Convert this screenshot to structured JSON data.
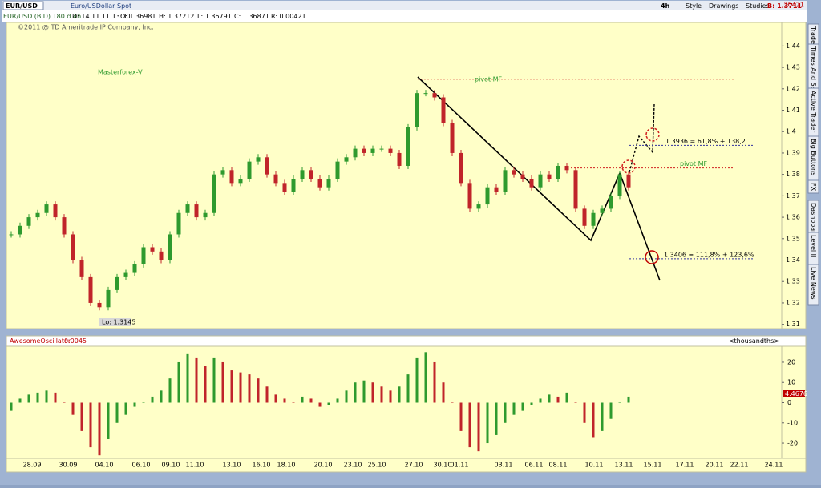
{
  "toolbar": {
    "symbol": "EUR/USD",
    "description": "Euro/USDollar Spot",
    "period": "4h",
    "buttons": [
      "Style",
      "Drawings",
      "Studies"
    ],
    "bid": "B: 1.3711",
    "change": ".20421"
  },
  "info_bar": [
    "EUR/USD (BID) 180 d 4h",
    "D: 14.11.11 13:00",
    "O: 1.36981",
    "H: 1.37212",
    "L: 1.36791",
    "C: 1.36871",
    "R: 0.00421"
  ],
  "copyright": "©2011 @ TD Ameritrade IP Company, Inc.",
  "side_tabs": [
    "Trade",
    "Times And Sales",
    "Active Trader",
    "Big Buttons",
    "FX",
    "Dashboard",
    "Level II",
    "Live News"
  ],
  "chart_data": [
    {
      "type": "candlestick",
      "title": "Masterforex-V",
      "closes": [
        1.352,
        1.356,
        1.36,
        1.362,
        1.366,
        1.36,
        1.352,
        1.34,
        1.332,
        1.32,
        1.318,
        1.326,
        1.332,
        1.334,
        1.338,
        1.346,
        1.344,
        1.34,
        1.352,
        1.362,
        1.366,
        1.36,
        1.362,
        1.38,
        1.382,
        1.376,
        1.378,
        1.386,
        1.388,
        1.38,
        1.376,
        1.372,
        1.378,
        1.382,
        1.378,
        1.374,
        1.378,
        1.386,
        1.388,
        1.392,
        1.39,
        1.392,
        1.392,
        1.39,
        1.384,
        1.402,
        1.418,
        1.418,
        1.416,
        1.404,
        1.39,
        1.376,
        1.364,
        1.366,
        1.374,
        1.372,
        1.382,
        1.38,
        1.378,
        1.374,
        1.38,
        1.378,
        1.384,
        1.382,
        1.364,
        1.356,
        1.362,
        1.364,
        1.37,
        1.38,
        1.374
      ],
      "up_color": "#2e9a2e",
      "down_color": "#c0242a",
      "ylim": [
        1.308,
        1.451
      ],
      "yticks": [
        1.31,
        1.32,
        1.33,
        1.34,
        1.35,
        1.36,
        1.37,
        1.38,
        1.39,
        1.4,
        1.41,
        1.42,
        1.43,
        1.44
      ],
      "low_label": "Lo: 1.3145",
      "levels": [
        {
          "value": 1.4245,
          "label": "pivot MF",
          "color": "#d02020"
        },
        {
          "value": 1.383,
          "label": "pivot MF",
          "color": "#d02020"
        },
        {
          "value": 1.3936,
          "label": "1.3936 = 61,8% + 138,2",
          "color": "#3030a0"
        },
        {
          "value": 1.3406,
          "label": "1.3406 = 111,8% + 123,6%",
          "color": "#3030a0"
        }
      ],
      "x_labels": [
        "28.09",
        "30.09",
        "04.10",
        "06.10",
        "09.10",
        "11.10",
        "13.10",
        "16.10",
        "18.10",
        "20.10",
        "23.10",
        "25.10",
        "27.10",
        "30.10",
        "01.11",
        "03.11",
        "06.11",
        "08.11",
        "10.11",
        "13.11",
        "15.11",
        "17.11",
        "20.11",
        "22.11",
        "24.11"
      ]
    },
    {
      "type": "histogram",
      "title": "AwesomeOscillator",
      "last_label": "0.0045",
      "units": "<thousandths>",
      "current": "4.4676",
      "values": [
        -4,
        2,
        4,
        5,
        6,
        5,
        0,
        -6,
        -14,
        -22,
        -26,
        -18,
        -10,
        -6,
        -2,
        0,
        3,
        6,
        12,
        20,
        24,
        22,
        18,
        22,
        20,
        16,
        15,
        14,
        12,
        8,
        4,
        2,
        0,
        3,
        2,
        -2,
        -1,
        2,
        6,
        10,
        11,
        10,
        8,
        6,
        8,
        14,
        22,
        25,
        20,
        10,
        0,
        -14,
        -22,
        -24,
        -20,
        -16,
        -10,
        -6,
        -4,
        -1,
        2,
        4,
        3,
        5,
        0,
        -10,
        -17,
        -14,
        -8,
        0,
        3
      ],
      "up_color": "#2e9a2e",
      "down_color": "#c0242a",
      "ylim": [
        -27.5,
        27.9
      ],
      "yticks": [
        -20,
        -10,
        0,
        10,
        20
      ]
    }
  ]
}
